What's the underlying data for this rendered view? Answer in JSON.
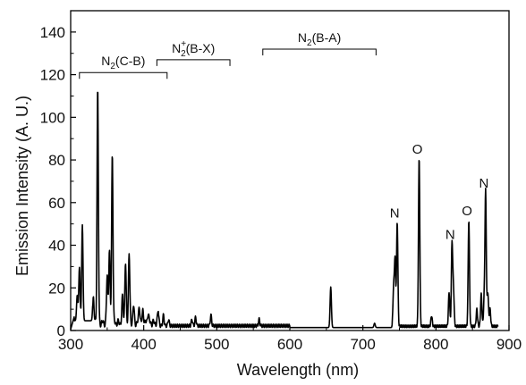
{
  "chart_data": {
    "type": "line",
    "title": "",
    "xlabel": "Wavelength (nm)",
    "ylabel": "Emission Intensity (A. U.)",
    "xlim": [
      300,
      900
    ],
    "ylim": [
      0,
      150
    ],
    "xticks": [
      300,
      400,
      500,
      600,
      700,
      800,
      900
    ],
    "yticks": [
      0,
      20,
      40,
      60,
      80,
      100,
      120,
      140
    ],
    "grid": false,
    "line_color": "#000000",
    "peaks": [
      {
        "x": 309,
        "y": 12
      },
      {
        "x": 312,
        "y": 25
      },
      {
        "x": 316,
        "y": 45
      },
      {
        "x": 331,
        "y": 12
      },
      {
        "x": 337,
        "y": 110
      },
      {
        "x": 350,
        "y": 22
      },
      {
        "x": 353,
        "y": 34
      },
      {
        "x": 357,
        "y": 80
      },
      {
        "x": 371,
        "y": 12
      },
      {
        "x": 375,
        "y": 28
      },
      {
        "x": 380,
        "y": 33
      },
      {
        "x": 386,
        "y": 8
      },
      {
        "x": 394,
        "y": 8
      },
      {
        "x": 399,
        "y": 6
      },
      {
        "x": 406,
        "y": 5
      },
      {
        "x": 420,
        "y": 6
      },
      {
        "x": 427,
        "y": 5
      },
      {
        "x": 434,
        "y": 3
      },
      {
        "x": 466,
        "y": 3
      },
      {
        "x": 471,
        "y": 4
      },
      {
        "x": 492,
        "y": 5
      },
      {
        "x": 558,
        "y": 3
      },
      {
        "x": 656,
        "y": 19
      },
      {
        "x": 716,
        "y": 2
      },
      {
        "x": 742,
        "y": 17
      },
      {
        "x": 744,
        "y": 31
      },
      {
        "x": 747,
        "y": 49
      },
      {
        "x": 777,
        "y": 79
      },
      {
        "x": 794,
        "y": 5
      },
      {
        "x": 818,
        "y": 16
      },
      {
        "x": 822,
        "y": 39
      },
      {
        "x": 824,
        "y": 17
      },
      {
        "x": 845,
        "y": 50
      },
      {
        "x": 856,
        "y": 8
      },
      {
        "x": 862,
        "y": 15
      },
      {
        "x": 866,
        "y": 12
      },
      {
        "x": 868,
        "y": 63
      },
      {
        "x": 871,
        "y": 16
      },
      {
        "x": 874,
        "y": 8
      }
    ],
    "band_groups": [
      {
        "label": "N",
        "sub": "2",
        "sup": "",
        "suffix": "(C-B)",
        "x_start": 312,
        "x_end": 432,
        "level": 121
      },
      {
        "label": "N",
        "sub": "2",
        "sup": "+",
        "suffix": "(B-X)",
        "x_start": 418,
        "x_end": 518,
        "level": 127
      },
      {
        "label": "N",
        "sub": "2",
        "sup": "",
        "suffix": "(B-A)",
        "x_start": 563,
        "x_end": 718,
        "level": 132
      }
    ],
    "annotations": [
      {
        "text": "N",
        "x": 746,
        "y": 53
      },
      {
        "text": "O",
        "x": 777,
        "y": 83
      },
      {
        "text": "N",
        "x": 822,
        "y": 43
      },
      {
        "text": "O",
        "x": 845,
        "y": 54
      },
      {
        "text": "N",
        "x": 868,
        "y": 67
      }
    ]
  }
}
